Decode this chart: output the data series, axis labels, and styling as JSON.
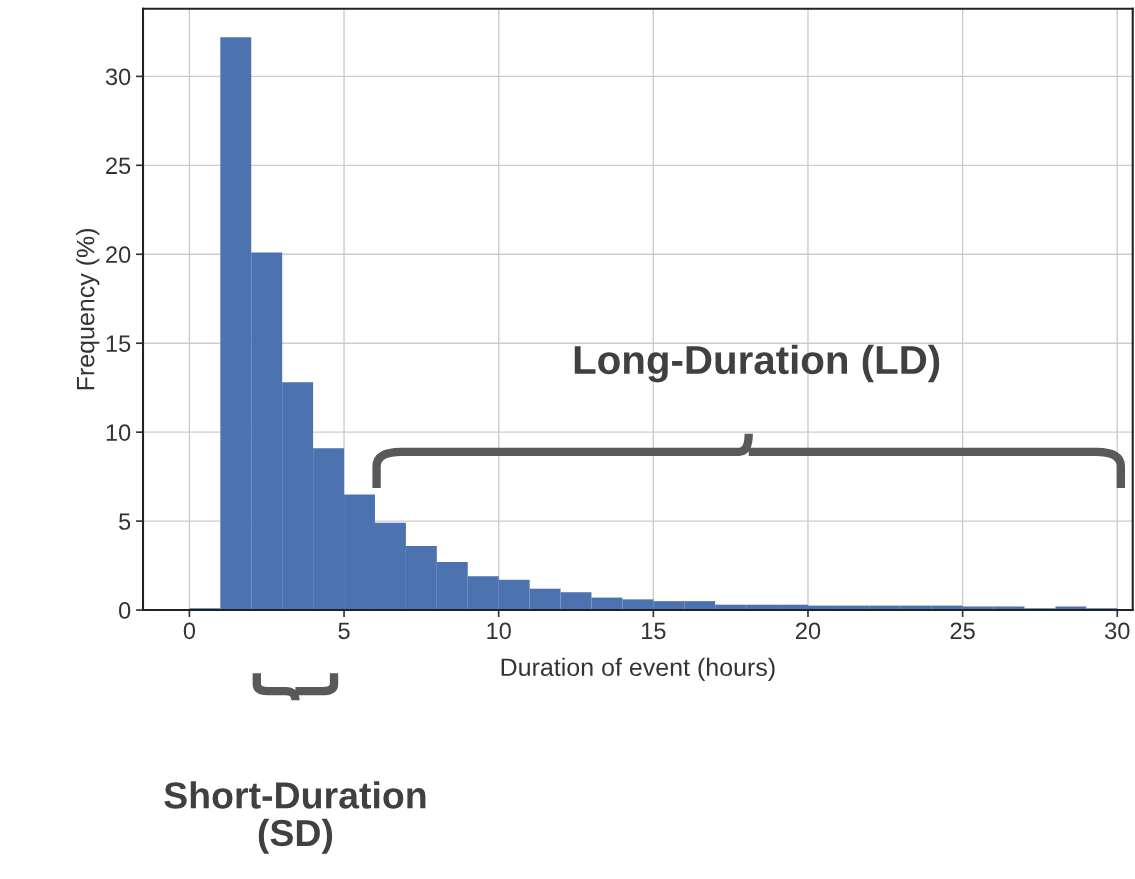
{
  "chart_data": {
    "type": "histogram",
    "xlabel": "Duration of event (hours)",
    "ylabel": "Frequency (%)",
    "bins": [
      0,
      1,
      2,
      3,
      4,
      5,
      6,
      7,
      8,
      9,
      10,
      11,
      12,
      13,
      14,
      15,
      16,
      17,
      18,
      19,
      20,
      21,
      22,
      23,
      24,
      25,
      26,
      27,
      28,
      29,
      30
    ],
    "values": [
      0.1,
      32.2,
      20.1,
      12.8,
      9.1,
      6.5,
      4.9,
      3.6,
      2.7,
      1.9,
      1.7,
      1.2,
      1.0,
      0.7,
      0.6,
      0.5,
      0.5,
      0.3,
      0.3,
      0.3,
      0.25,
      0.25,
      0.25,
      0.25,
      0.25,
      0.2,
      0.2,
      0.1,
      0.2,
      0.1
    ],
    "color": "#4c72b0",
    "xlim": [
      -1.5,
      30.5
    ],
    "xticks": [
      0,
      5,
      10,
      15,
      20,
      25,
      30
    ],
    "ylim": [
      0,
      33.8
    ],
    "yticks": [
      0,
      5,
      10,
      15,
      20,
      25,
      30
    ],
    "grid": true,
    "annotations": [
      "Long-Duration (LD)",
      "Short-Duration (SD)"
    ]
  }
}
